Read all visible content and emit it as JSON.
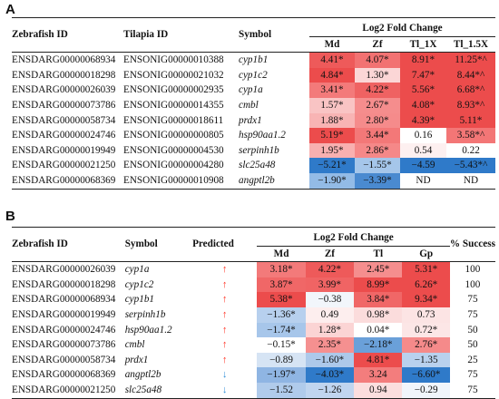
{
  "panelA": {
    "label": "A",
    "headers": {
      "col1": "Zebrafish ID",
      "col2": "Tilapia ID",
      "col3": "Symbol",
      "group": "Log2 Fold Change",
      "sub": [
        "Md",
        "Zf",
        "Tl_1X",
        "Tl_1.5X"
      ]
    },
    "rows": [
      {
        "zf": "ENSDARG00000068934",
        "tl": "ENSONIG00000010388",
        "sym": "cyp1b1",
        "vals": [
          "4.41*",
          "4.07*",
          "8.91*",
          "11.25*^"
        ],
        "colors": [
          "#ee5a5a",
          "#f27272",
          "#ec4c4c",
          "#ec4c4c"
        ]
      },
      {
        "zf": "ENSDARG00000018298",
        "tl": "ENSONIG00000021032",
        "sym": "cyp1c2",
        "vals": [
          "4.84*",
          "1.30*",
          "7.47*",
          "8.44*^"
        ],
        "colors": [
          "#ec4c4c",
          "#fbd6d6",
          "#ec4c4c",
          "#ec4c4c"
        ]
      },
      {
        "zf": "ENSDARG00000026039",
        "tl": "ENSONIG00000002935",
        "sym": "cyp1a",
        "vals": [
          "3.41*",
          "4.22*",
          "5.56*",
          "6.68*^"
        ],
        "colors": [
          "#f37a7a",
          "#ef6262",
          "#ec4c4c",
          "#ec4c4c"
        ]
      },
      {
        "zf": "ENSDARG00000073786",
        "tl": "ENSONIG00000014355",
        "sym": "cmbl",
        "vals": [
          "1.57*",
          "2.67*",
          "4.08*",
          "8.93*^"
        ],
        "colors": [
          "#f9c4c4",
          "#f58d8d",
          "#ec4c4c",
          "#ec4c4c"
        ]
      },
      {
        "zf": "ENSDARG00000058734",
        "tl": "ENSONIG00000018611",
        "sym": "prdx1",
        "vals": [
          "1.88*",
          "2.80*",
          "4.39*",
          "5.11*"
        ],
        "colors": [
          "#f8b4b4",
          "#f58b8b",
          "#ec4c4c",
          "#ec4c4c"
        ]
      },
      {
        "zf": "ENSDARG00000024746",
        "tl": "ENSONIG00000000805",
        "sym": "hsp90aa1.2",
        "vals": [
          "5.19*",
          "3.44*",
          "0.16",
          "3.58*^"
        ],
        "colors": [
          "#ec4c4c",
          "#f37878",
          "#ffffff",
          "#f37676"
        ]
      },
      {
        "zf": "ENSDARG00000019949",
        "tl": "ENSONIG00000004530",
        "sym": "serpinh1b",
        "vals": [
          "1.95*",
          "2.86*",
          "0.54",
          "0.22"
        ],
        "colors": [
          "#f8b0b0",
          "#f58888",
          "#fdf0f0",
          "#ffffff"
        ]
      },
      {
        "zf": "ENSDARG00000021250",
        "tl": "ENSONIG00000004280",
        "sym": "slc25a48",
        "vals": [
          "−5.21*",
          "−1.55*",
          "−4.59",
          "−5.43*^"
        ],
        "colors": [
          "#2f7ac9",
          "#a5c6ea",
          "#2f7ac9",
          "#2f7ac9"
        ]
      },
      {
        "zf": "ENSDARG00000068369",
        "tl": "ENSONIG00000010908",
        "sym": "angptl2b",
        "vals": [
          "−1.90*",
          "−3.39*",
          "ND",
          "ND"
        ],
        "colors": [
          "#93bbe6",
          "#4a8ad0",
          "#ffffff",
          "#ffffff"
        ]
      }
    ]
  },
  "panelB": {
    "label": "B",
    "headers": {
      "col1": "Zebrafish ID",
      "col2": "Symbol",
      "col3": "Predicted",
      "group": "Log2 Fold Change",
      "sub": [
        "Md",
        "Zf",
        "Tl",
        "Gp"
      ],
      "success": "% Success"
    },
    "rows": [
      {
        "zf": "ENSDARG00000026039",
        "sym": "cyp1a",
        "pred": "↑",
        "dir": "up",
        "vals": [
          "3.18*",
          "4.22*",
          "2.45*",
          "5.31*"
        ],
        "colors": [
          "#f37a7a",
          "#ee5a5a",
          "#f58e8e",
          "#ec4c4c"
        ],
        "success": "100"
      },
      {
        "zf": "ENSDARG00000018298",
        "sym": "cyp1c2",
        "pred": "↑",
        "dir": "up",
        "vals": [
          "3.87*",
          "3.99*",
          "8.99*",
          "6.26*"
        ],
        "colors": [
          "#f06767",
          "#f06464",
          "#ec4c4c",
          "#ec4c4c"
        ],
        "success": "100"
      },
      {
        "zf": "ENSDARG00000068934",
        "sym": "cyp1b1",
        "pred": "↑",
        "dir": "up",
        "vals": [
          "5.38*",
          "−0.38",
          "3.84*",
          "9.34*"
        ],
        "colors": [
          "#ec4c4c",
          "#f2f6fb",
          "#f06767",
          "#ec4c4c"
        ],
        "success": "75"
      },
      {
        "zf": "ENSDARG00000019949",
        "sym": "serpinh1b",
        "pred": "↑",
        "dir": "up",
        "vals": [
          "−1.36*",
          "0.49",
          "0.98*",
          "0.73"
        ],
        "colors": [
          "#b7d0ee",
          "#fdeeee",
          "#fbdcdc",
          "#fce4e4"
        ],
        "success": "75"
      },
      {
        "zf": "ENSDARG00000024746",
        "sym": "hsp90aa1.2",
        "pred": "↑",
        "dir": "up",
        "vals": [
          "−1.74*",
          "1.28*",
          "0.04*",
          "0.72*"
        ],
        "colors": [
          "#a7c6ea",
          "#fbd4d4",
          "#ffffff",
          "#fce6e6"
        ],
        "success": "50"
      },
      {
        "zf": "ENSDARG00000073786",
        "sym": "cmbl",
        "pred": "↑",
        "dir": "up",
        "vals": [
          "−0.15*",
          "2.35*",
          "−2.18*",
          "2.76*"
        ],
        "colors": [
          "#ffffff",
          "#f59090",
          "#6aa0d9",
          "#f58a8a"
        ],
        "success": "50"
      },
      {
        "zf": "ENSDARG00000058734",
        "sym": "prdx1",
        "pred": "↑",
        "dir": "up",
        "vals": [
          "−0.89",
          "−1.60*",
          "4.81*",
          "−1.35"
        ],
        "colors": [
          "#d6e4f4",
          "#adc9ea",
          "#ec4c4c",
          "#b9d1ee"
        ],
        "success": "25"
      },
      {
        "zf": "ENSDARG00000068369",
        "sym": "angptl2b",
        "pred": "↓",
        "dir": "down",
        "vals": [
          "−1.97*",
          "−4.03*",
          "3.24",
          "−6.60*"
        ],
        "colors": [
          "#8fb5e3",
          "#2f7ac9",
          "#f37d7d",
          "#2f7ac9"
        ],
        "success": "75"
      },
      {
        "zf": "ENSDARG00000021250",
        "sym": "slc25a48",
        "pred": "↓",
        "dir": "down",
        "vals": [
          "−1.52",
          "−1.26",
          "0.94",
          "−0.29"
        ],
        "colors": [
          "#b0cbeb",
          "#c0d5ef",
          "#fbdede",
          "#f0f5fb"
        ],
        "success": "75"
      }
    ]
  }
}
